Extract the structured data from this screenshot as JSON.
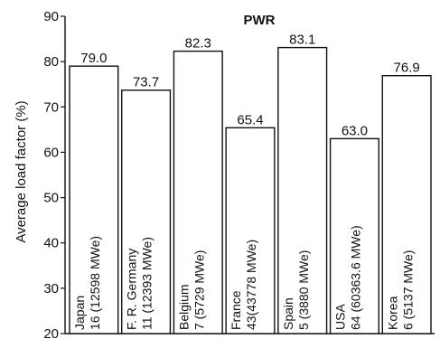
{
  "chart_data": {
    "type": "bar",
    "title": "PWR",
    "ylabel": "Average load factor (%)",
    "ylim": [
      20,
      90
    ],
    "yticks": [
      20,
      30,
      40,
      50,
      60,
      70,
      80,
      90
    ],
    "categories": [
      {
        "name": "Japan",
        "detail": "16 (12598 MWe)",
        "value": 79.0,
        "value_label": "79.0"
      },
      {
        "name": "F. R. Germany",
        "detail": "11 (12393 MWe)",
        "value": 73.7,
        "value_label": "73.7"
      },
      {
        "name": "Belgium",
        "detail": "7 (5729 MWe)",
        "value": 82.3,
        "value_label": "82.3"
      },
      {
        "name": "France",
        "detail": "43(43778 MWe)",
        "value": 65.4,
        "value_label": "65.4"
      },
      {
        "name": "Spain",
        "detail": "5 (3880 MWe)",
        "value": 83.1,
        "value_label": "83.1"
      },
      {
        "name": "USA",
        "detail": "64 (60363.6 MWe)",
        "value": 63.0,
        "value_label": "63.0"
      },
      {
        "name": "Korea",
        "detail": "6 (5137 MWe)",
        "value": 76.9,
        "value_label": "76.9"
      }
    ]
  }
}
